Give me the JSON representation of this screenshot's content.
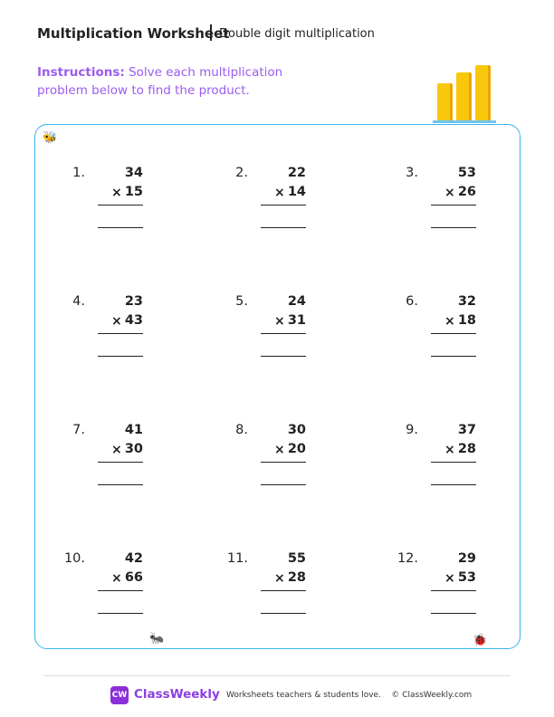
{
  "header": {
    "title": "Multiplication Worksheet",
    "subtitle": "Double digit multiplication"
  },
  "instructions": {
    "label": "Instructions:",
    "text": " Solve each multiplication problem below to find the product."
  },
  "operator": "×",
  "problems": [
    {
      "n": "1.",
      "a": "34",
      "b": "15"
    },
    {
      "n": "2.",
      "a": "22",
      "b": "14"
    },
    {
      "n": "3.",
      "a": "53",
      "b": "26"
    },
    {
      "n": "4.",
      "a": "23",
      "b": "43"
    },
    {
      "n": "5.",
      "a": "24",
      "b": "31"
    },
    {
      "n": "6.",
      "a": "32",
      "b": "18"
    },
    {
      "n": "7.",
      "a": "41",
      "b": "30"
    },
    {
      "n": "8.",
      "a": "30",
      "b": "20"
    },
    {
      "n": "9.",
      "a": "37",
      "b": "28"
    },
    {
      "n": "10.",
      "a": "42",
      "b": "66"
    },
    {
      "n": "11.",
      "a": "55",
      "b": "28"
    },
    {
      "n": "12.",
      "a": "29",
      "b": "53"
    }
  ],
  "footer": {
    "logo": "CW",
    "brand": "ClassWeekly",
    "tagline": "Worksheets teachers & students love.    © ClassWeekly.com"
  },
  "colors": {
    "accent": "#9b5cf0",
    "border": "#3bb4ef",
    "brand": "#8b2fd9"
  }
}
